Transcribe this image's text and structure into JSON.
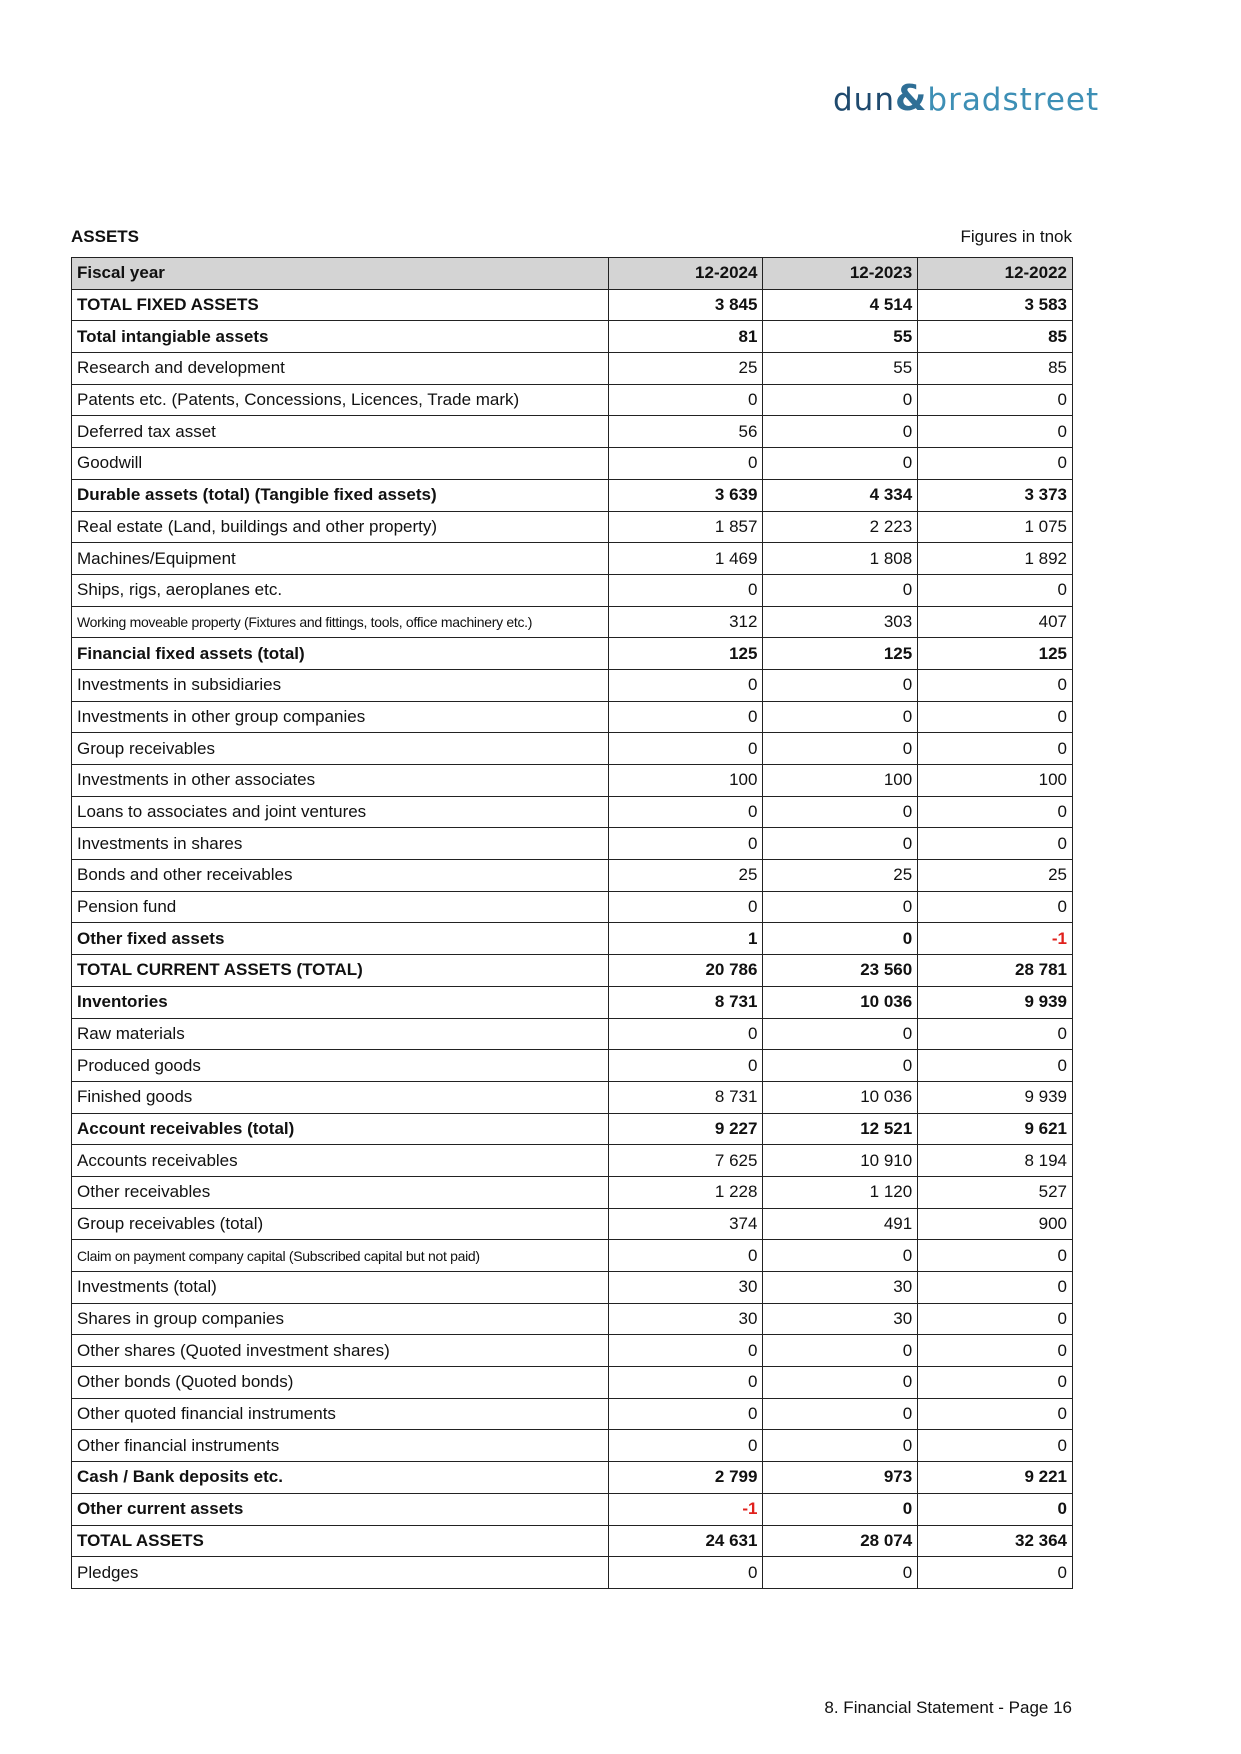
{
  "logo": {
    "part1": "dun",
    "amp": "&",
    "part2": "bradstreet"
  },
  "section_title": "ASSETS",
  "units": "Figures in tnok",
  "table": {
    "header": [
      "Fiscal year",
      "12-2024",
      "12-2023",
      "12-2022"
    ],
    "rows": [
      {
        "label": "TOTAL FIXED ASSETS",
        "values": [
          "3 845",
          "4 514",
          "3 583"
        ],
        "bold": true
      },
      {
        "label": "Total intangiable assets",
        "values": [
          "81",
          "55",
          "85"
        ],
        "bold": true
      },
      {
        "label": "Research and development",
        "values": [
          "25",
          "55",
          "85"
        ]
      },
      {
        "label": "Patents etc. (Patents, Concessions, Licences, Trade mark)",
        "values": [
          "0",
          "0",
          "0"
        ]
      },
      {
        "label": "Deferred tax asset",
        "values": [
          "56",
          "0",
          "0"
        ]
      },
      {
        "label": "Goodwill",
        "values": [
          "0",
          "0",
          "0"
        ]
      },
      {
        "label": "Durable assets (total) (Tangible fixed assets)",
        "values": [
          "3 639",
          "4 334",
          "3 373"
        ],
        "bold": true
      },
      {
        "label": "Real estate (Land, buildings and other property)",
        "values": [
          "1 857",
          "2 223",
          "1 075"
        ]
      },
      {
        "label": "Machines/Equipment",
        "values": [
          "1 469",
          "1 808",
          "1 892"
        ]
      },
      {
        "label": "Ships, rigs, aeroplanes etc.",
        "values": [
          "0",
          "0",
          "0"
        ]
      },
      {
        "label": "Working moveable property (Fixtures and fittings, tools, office machinery etc.)",
        "values": [
          "312",
          "303",
          "407"
        ],
        "small": true
      },
      {
        "label": "Financial fixed assets (total)",
        "values": [
          "125",
          "125",
          "125"
        ],
        "bold": true
      },
      {
        "label": "Investments in subsidiaries",
        "values": [
          "0",
          "0",
          "0"
        ]
      },
      {
        "label": "Investments in other group companies",
        "values": [
          "0",
          "0",
          "0"
        ]
      },
      {
        "label": "Group receivables",
        "values": [
          "0",
          "0",
          "0"
        ]
      },
      {
        "label": "Investments in other associates",
        "values": [
          "100",
          "100",
          "100"
        ]
      },
      {
        "label": "Loans to associates and joint ventures",
        "values": [
          "0",
          "0",
          "0"
        ]
      },
      {
        "label": "Investments in shares",
        "values": [
          "0",
          "0",
          "0"
        ]
      },
      {
        "label": "Bonds and other receivables",
        "values": [
          "25",
          "25",
          "25"
        ]
      },
      {
        "label": "Pension fund",
        "values": [
          "0",
          "0",
          "0"
        ]
      },
      {
        "label": "Other fixed assets",
        "values": [
          "1",
          "0",
          "-1"
        ],
        "bold": true
      },
      {
        "label": "TOTAL CURRENT ASSETS (TOTAL)",
        "values": [
          "20 786",
          "23 560",
          "28 781"
        ],
        "bold": true
      },
      {
        "label": "Inventories",
        "values": [
          "8 731",
          "10 036",
          "9 939"
        ],
        "bold": true
      },
      {
        "label": "Raw materials",
        "values": [
          "0",
          "0",
          "0"
        ]
      },
      {
        "label": "Produced goods",
        "values": [
          "0",
          "0",
          "0"
        ]
      },
      {
        "label": "Finished goods",
        "values": [
          "8 731",
          "10 036",
          "9 939"
        ]
      },
      {
        "label": "Account receivables (total)",
        "values": [
          "9 227",
          "12 521",
          "9 621"
        ],
        "bold": true
      },
      {
        "label": "Accounts receivables",
        "values": [
          "7 625",
          "10 910",
          "8 194"
        ]
      },
      {
        "label": "Other receivables",
        "values": [
          "1 228",
          "1 120",
          "527"
        ]
      },
      {
        "label": "Group receivables (total)",
        "values": [
          "374",
          "491",
          "900"
        ]
      },
      {
        "label": "Claim on payment company capital (Subscribed capital but not paid)",
        "values": [
          "0",
          "0",
          "0"
        ],
        "small": true
      },
      {
        "label": "Investments (total)",
        "values": [
          "30",
          "30",
          "0"
        ]
      },
      {
        "label": "Shares in group companies",
        "values": [
          "30",
          "30",
          "0"
        ]
      },
      {
        "label": "Other shares (Quoted investment shares)",
        "values": [
          "0",
          "0",
          "0"
        ]
      },
      {
        "label": "Other bonds (Quoted bonds)",
        "values": [
          "0",
          "0",
          "0"
        ]
      },
      {
        "label": "Other quoted financial instruments",
        "values": [
          "0",
          "0",
          "0"
        ]
      },
      {
        "label": "Other financial instruments",
        "values": [
          "0",
          "0",
          "0"
        ]
      },
      {
        "label": "Cash / Bank deposits etc.",
        "values": [
          "2 799",
          "973",
          "9 221"
        ],
        "bold": true
      },
      {
        "label": "Other current assets",
        "values": [
          "-1",
          "0",
          "0"
        ],
        "bold": true
      },
      {
        "label": "TOTAL ASSETS",
        "values": [
          "24 631",
          "28 074",
          "32 364"
        ],
        "bold": true
      },
      {
        "label": "Pledges",
        "values": [
          "0",
          "0",
          "0"
        ]
      }
    ]
  },
  "negative_color": "#e0201c",
  "footer": "8. Financial Statement - Page 16"
}
